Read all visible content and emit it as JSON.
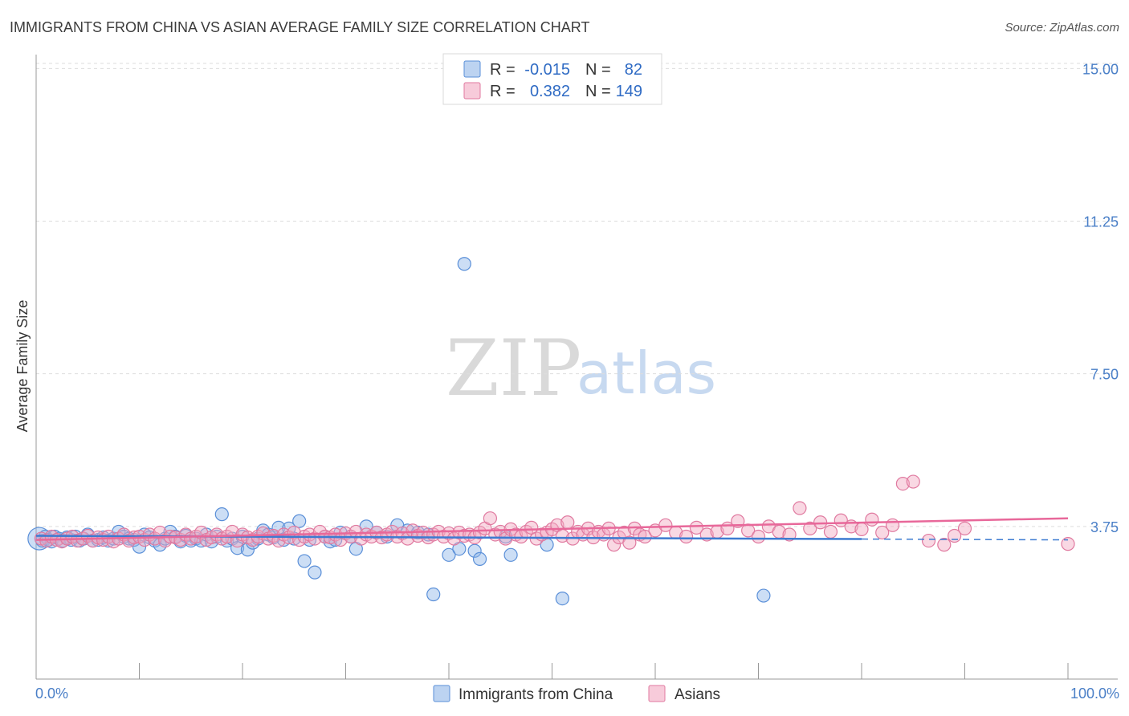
{
  "header": {
    "title": "IMMIGRANTS FROM CHINA VS ASIAN AVERAGE FAMILY SIZE CORRELATION CHART",
    "source": "Source: ZipAtlas.com"
  },
  "watermark": {
    "zip": "ZIP",
    "atlas": "atlas"
  },
  "legend_top": {
    "rows": [
      {
        "r_label": "R =",
        "r_value": "-0.015",
        "n_label": "N =",
        "n_value": "82",
        "color": "#8fb5e8"
      },
      {
        "r_label": "R =",
        "r_value": "0.382",
        "n_label": "N =",
        "n_value": "149",
        "color": "#f2a9c2"
      }
    ]
  },
  "legend_bottom": {
    "items": [
      {
        "label": "Immigrants from China",
        "color": "#8fb5e8"
      },
      {
        "label": "Asians",
        "color": "#f2a9c2"
      }
    ]
  },
  "chart_data": {
    "type": "scatter",
    "title": "IMMIGRANTS FROM CHINA VS ASIAN AVERAGE FAMILY SIZE CORRELATION CHART",
    "xlabel": "",
    "ylabel": "Average Family Size",
    "xlim": [
      0,
      100
    ],
    "ylim": [
      0,
      15.5
    ],
    "x_tick_labels": [
      "0.0%",
      "100.0%"
    ],
    "y_ticks": [
      3.75,
      7.5,
      11.25,
      15.0
    ],
    "y_tick_labels": [
      "3.75",
      "7.50",
      "11.25",
      "15.00"
    ],
    "grid": "horizontal dashed",
    "legend_position": "top-center",
    "series": [
      {
        "name": "Immigrants from China",
        "color": "#8fb5e8",
        "stroke": "#5a8fd8",
        "r": -0.015,
        "n": 82,
        "trend": {
          "x": [
            0,
            80,
            100
          ],
          "y": [
            3.52,
            3.44,
            3.42
          ],
          "solid_until": 80
        },
        "points": [
          [
            0.3,
            3.45
          ],
          [
            0.6,
            3.4
          ],
          [
            0.9,
            3.5
          ],
          [
            1.2,
            3.42
          ],
          [
            1.5,
            3.38
          ],
          [
            1.8,
            3.5
          ],
          [
            2.2,
            3.45
          ],
          [
            2.6,
            3.4
          ],
          [
            3.0,
            3.48
          ],
          [
            3.4,
            3.42
          ],
          [
            3.8,
            3.5
          ],
          [
            4.2,
            3.4
          ],
          [
            4.6,
            3.45
          ],
          [
            5.0,
            3.55
          ],
          [
            5.5,
            3.4
          ],
          [
            6.0,
            3.42
          ],
          [
            6.5,
            3.48
          ],
          [
            7.0,
            3.4
          ],
          [
            7.5,
            3.45
          ],
          [
            8.0,
            3.62
          ],
          [
            8.5,
            3.5
          ],
          [
            9.0,
            3.45
          ],
          [
            9.5,
            3.42
          ],
          [
            10.0,
            3.25
          ],
          [
            10.5,
            3.55
          ],
          [
            11.0,
            3.48
          ],
          [
            11.5,
            3.4
          ],
          [
            12.0,
            3.3
          ],
          [
            12.5,
            3.45
          ],
          [
            13.0,
            3.62
          ],
          [
            13.5,
            3.5
          ],
          [
            14.0,
            3.38
          ],
          [
            14.5,
            3.52
          ],
          [
            15.0,
            3.4
          ],
          [
            15.5,
            3.45
          ],
          [
            16.0,
            3.4
          ],
          [
            16.5,
            3.55
          ],
          [
            17.0,
            3.38
          ],
          [
            17.5,
            3.5
          ],
          [
            18.0,
            4.05
          ],
          [
            18.5,
            3.4
          ],
          [
            19.0,
            3.45
          ],
          [
            19.5,
            3.22
          ],
          [
            20.0,
            3.5
          ],
          [
            20.5,
            3.18
          ],
          [
            21.0,
            3.35
          ],
          [
            21.5,
            3.45
          ],
          [
            22.0,
            3.65
          ],
          [
            22.5,
            3.55
          ],
          [
            23.0,
            3.48
          ],
          [
            23.5,
            3.72
          ],
          [
            24.0,
            3.42
          ],
          [
            24.5,
            3.7
          ],
          [
            25.0,
            3.45
          ],
          [
            25.5,
            3.88
          ],
          [
            26.0,
            2.9
          ],
          [
            26.5,
            3.42
          ],
          [
            27.0,
            2.62
          ],
          [
            28.0,
            3.5
          ],
          [
            28.5,
            3.38
          ],
          [
            29.0,
            3.42
          ],
          [
            29.5,
            3.6
          ],
          [
            30.5,
            3.5
          ],
          [
            31.0,
            3.2
          ],
          [
            32.0,
            3.75
          ],
          [
            33.0,
            3.6
          ],
          [
            34.0,
            3.5
          ],
          [
            35.0,
            3.78
          ],
          [
            36.0,
            3.65
          ],
          [
            37.0,
            3.6
          ],
          [
            38.0,
            3.55
          ],
          [
            38.5,
            2.08
          ],
          [
            40.0,
            3.05
          ],
          [
            41.0,
            3.2
          ],
          [
            41.5,
            10.2
          ],
          [
            42.5,
            3.15
          ],
          [
            43.0,
            2.95
          ],
          [
            45.5,
            3.5
          ],
          [
            46.0,
            3.05
          ],
          [
            49.5,
            3.3
          ],
          [
            51.0,
            1.98
          ],
          [
            70.5,
            2.05
          ]
        ]
      },
      {
        "name": "Asians",
        "color": "#f2a9c2",
        "stroke": "#e07aa0",
        "r": 0.382,
        "n": 149,
        "trend": {
          "x": [
            0,
            100
          ],
          "y": [
            3.42,
            3.95
          ]
        },
        "points": [
          [
            0.5,
            3.45
          ],
          [
            1.0,
            3.4
          ],
          [
            1.5,
            3.5
          ],
          [
            2.0,
            3.42
          ],
          [
            2.5,
            3.38
          ],
          [
            3.0,
            3.45
          ],
          [
            3.5,
            3.5
          ],
          [
            4.0,
            3.4
          ],
          [
            4.5,
            3.45
          ],
          [
            5.0,
            3.52
          ],
          [
            5.5,
            3.4
          ],
          [
            6.0,
            3.48
          ],
          [
            6.5,
            3.42
          ],
          [
            7.0,
            3.5
          ],
          [
            7.5,
            3.38
          ],
          [
            8.0,
            3.45
          ],
          [
            8.5,
            3.55
          ],
          [
            9.0,
            3.4
          ],
          [
            9.5,
            3.48
          ],
          [
            10.0,
            3.5
          ],
          [
            10.5,
            3.42
          ],
          [
            11.0,
            3.55
          ],
          [
            11.5,
            3.45
          ],
          [
            12.0,
            3.6
          ],
          [
            12.5,
            3.4
          ],
          [
            13.0,
            3.5
          ],
          [
            13.5,
            3.48
          ],
          [
            14.0,
            3.42
          ],
          [
            14.5,
            3.55
          ],
          [
            15.0,
            3.45
          ],
          [
            15.5,
            3.5
          ],
          [
            16.0,
            3.6
          ],
          [
            16.5,
            3.42
          ],
          [
            17.0,
            3.48
          ],
          [
            17.5,
            3.55
          ],
          [
            18.0,
            3.45
          ],
          [
            18.5,
            3.5
          ],
          [
            19.0,
            3.62
          ],
          [
            19.5,
            3.4
          ],
          [
            20.0,
            3.55
          ],
          [
            20.5,
            3.48
          ],
          [
            21.0,
            3.42
          ],
          [
            21.5,
            3.5
          ],
          [
            22.0,
            3.58
          ],
          [
            22.5,
            3.45
          ],
          [
            23.0,
            3.52
          ],
          [
            23.5,
            3.4
          ],
          [
            24.0,
            3.55
          ],
          [
            24.5,
            3.48
          ],
          [
            25.0,
            3.6
          ],
          [
            25.5,
            3.42
          ],
          [
            26.0,
            3.5
          ],
          [
            26.5,
            3.55
          ],
          [
            27.0,
            3.45
          ],
          [
            27.5,
            3.62
          ],
          [
            28.0,
            3.5
          ],
          [
            28.5,
            3.48
          ],
          [
            29.0,
            3.55
          ],
          [
            29.5,
            3.42
          ],
          [
            30.0,
            3.58
          ],
          [
            30.5,
            3.5
          ],
          [
            31.0,
            3.62
          ],
          [
            31.5,
            3.45
          ],
          [
            32.0,
            3.55
          ],
          [
            32.5,
            3.5
          ],
          [
            33.0,
            3.6
          ],
          [
            33.5,
            3.48
          ],
          [
            34.0,
            3.55
          ],
          [
            34.5,
            3.62
          ],
          [
            35.0,
            3.5
          ],
          [
            35.5,
            3.58
          ],
          [
            36.0,
            3.45
          ],
          [
            36.5,
            3.65
          ],
          [
            37.0,
            3.52
          ],
          [
            37.5,
            3.6
          ],
          [
            38.0,
            3.48
          ],
          [
            38.5,
            3.55
          ],
          [
            39.0,
            3.62
          ],
          [
            39.5,
            3.5
          ],
          [
            40.0,
            3.58
          ],
          [
            40.5,
            3.45
          ],
          [
            41.0,
            3.6
          ],
          [
            41.5,
            3.52
          ],
          [
            42.0,
            3.55
          ],
          [
            42.5,
            3.48
          ],
          [
            43.0,
            3.6
          ],
          [
            43.5,
            3.7
          ],
          [
            44.0,
            3.95
          ],
          [
            44.5,
            3.55
          ],
          [
            45.0,
            3.62
          ],
          [
            45.5,
            3.45
          ],
          [
            46.0,
            3.68
          ],
          [
            46.5,
            3.55
          ],
          [
            47.0,
            3.5
          ],
          [
            47.5,
            3.62
          ],
          [
            48.0,
            3.72
          ],
          [
            48.5,
            3.45
          ],
          [
            49.0,
            3.55
          ],
          [
            49.5,
            3.6
          ],
          [
            50.0,
            3.68
          ],
          [
            50.5,
            3.78
          ],
          [
            51.0,
            3.52
          ],
          [
            51.5,
            3.85
          ],
          [
            52.0,
            3.45
          ],
          [
            52.5,
            3.62
          ],
          [
            53.0,
            3.55
          ],
          [
            53.5,
            3.7
          ],
          [
            54.0,
            3.48
          ],
          [
            54.5,
            3.62
          ],
          [
            55.0,
            3.55
          ],
          [
            55.5,
            3.7
          ],
          [
            56.0,
            3.3
          ],
          [
            56.5,
            3.48
          ],
          [
            57.0,
            3.6
          ],
          [
            57.5,
            3.35
          ],
          [
            58.0,
            3.7
          ],
          [
            58.5,
            3.55
          ],
          [
            59.0,
            3.5
          ],
          [
            60.0,
            3.65
          ],
          [
            61.0,
            3.78
          ],
          [
            62.0,
            3.6
          ],
          [
            63.0,
            3.5
          ],
          [
            64.0,
            3.72
          ],
          [
            65.0,
            3.55
          ],
          [
            66.0,
            3.62
          ],
          [
            67.0,
            3.7
          ],
          [
            68.0,
            3.88
          ],
          [
            69.0,
            3.65
          ],
          [
            70.0,
            3.5
          ],
          [
            71.0,
            3.75
          ],
          [
            72.0,
            3.62
          ],
          [
            73.0,
            3.55
          ],
          [
            74.0,
            4.2
          ],
          [
            75.0,
            3.7
          ],
          [
            76.0,
            3.85
          ],
          [
            77.0,
            3.62
          ],
          [
            78.0,
            3.9
          ],
          [
            79.0,
            3.75
          ],
          [
            80.0,
            3.68
          ],
          [
            81.0,
            3.92
          ],
          [
            82.0,
            3.6
          ],
          [
            83.0,
            3.78
          ],
          [
            84.0,
            4.8
          ],
          [
            85.0,
            4.85
          ],
          [
            86.5,
            3.4
          ],
          [
            88.0,
            3.3
          ],
          [
            89.0,
            3.52
          ],
          [
            90.0,
            3.7
          ],
          [
            100.0,
            3.32
          ]
        ]
      }
    ]
  }
}
